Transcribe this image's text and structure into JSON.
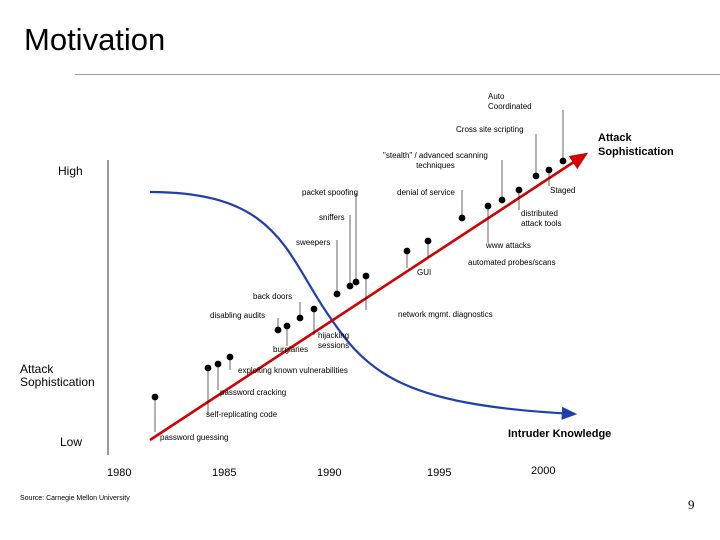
{
  "slide": {
    "title": "Motivation",
    "source": "Source: Carnegie Mellon University",
    "page_number": "9"
  },
  "axes": {
    "y_high": "High",
    "y_low": "Low",
    "y_label_left": "Attack\nSophistication",
    "red_line_label": "Attack\nSophistication",
    "blue_curve_label": "Intruder Knowledge",
    "years": [
      "1980",
      "1985",
      "1990",
      "1995",
      "2000"
    ]
  },
  "milestones": [
    "password guessing",
    "self-replicating code",
    "password cracking",
    "exploiting known vulnerabilities",
    "disabling audits",
    "back doors",
    "burglaries",
    "hijacking\nsessions",
    "network mgmt. diagnostics",
    "sweepers",
    "sniffers",
    "GUI",
    "packet spoofing",
    "automated probes/scans",
    "www attacks",
    "denial of service",
    "distributed\nattack tools",
    "\"stealth\" / advanced scanning\ntechniques",
    "Staged",
    "Cross site scripting",
    "Auto\nCoordinated"
  ],
  "colors": {
    "attack_line": "#d40000",
    "knowledge_curve": "#1f3fb0",
    "marker": "#000000",
    "rule": "#9a9a9a"
  }
}
